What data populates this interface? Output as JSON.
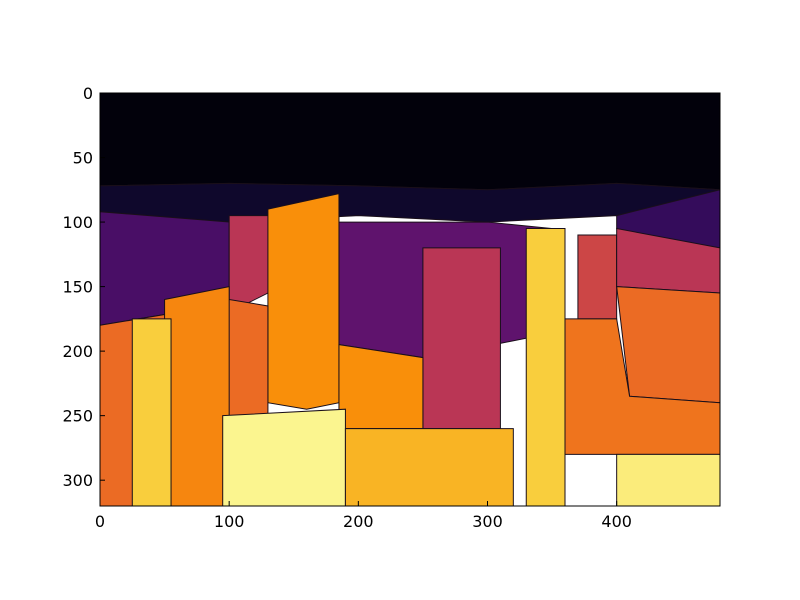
{
  "chart_data": {
    "type": "heatmap",
    "title": "",
    "xlabel": "",
    "ylabel": "",
    "xlim": [
      0,
      480
    ],
    "ylim": [
      320,
      0
    ],
    "x_ticks": [
      "0",
      "100",
      "200",
      "300",
      "400"
    ],
    "y_ticks": [
      "0",
      "50",
      "100",
      "150",
      "200",
      "250",
      "300"
    ],
    "colormap": "inferno",
    "grid": false,
    "legend": "none",
    "colormap_colors": [
      "#000004",
      "#0d0829",
      "#280b54",
      "#57106e",
      "#8a226a",
      "#bc3754",
      "#e55c30",
      "#f98e09",
      "#f9c932",
      "#fcffa4"
    ],
    "regions": [
      {
        "name": "sky",
        "level": 0.02,
        "polygon": [
          [
            0,
            0
          ],
          [
            480,
            0
          ],
          [
            480,
            75
          ],
          [
            400,
            70
          ],
          [
            300,
            75
          ],
          [
            200,
            72
          ],
          [
            100,
            70
          ],
          [
            0,
            72
          ]
        ]
      },
      {
        "name": "upper-tree-band",
        "level": 0.12,
        "polygon": [
          [
            0,
            72
          ],
          [
            100,
            70
          ],
          [
            200,
            72
          ],
          [
            300,
            75
          ],
          [
            400,
            70
          ],
          [
            480,
            75
          ],
          [
            480,
            100
          ],
          [
            400,
            95
          ],
          [
            300,
            100
          ],
          [
            200,
            95
          ],
          [
            100,
            100
          ],
          [
            0,
            92
          ]
        ]
      },
      {
        "name": "far-trees-left",
        "level": 0.3,
        "polygon": [
          [
            0,
            92
          ],
          [
            100,
            100
          ],
          [
            100,
            160
          ],
          [
            60,
            170
          ],
          [
            0,
            180
          ]
        ]
      },
      {
        "name": "mid-trees-center",
        "level": 0.35,
        "polygon": [
          [
            185,
            100
          ],
          [
            300,
            100
          ],
          [
            350,
            105
          ],
          [
            340,
            140
          ],
          [
            330,
            190
          ],
          [
            280,
            200
          ],
          [
            250,
            205
          ],
          [
            185,
            195
          ]
        ]
      },
      {
        "name": "right-canopy",
        "level": 0.25,
        "polygon": [
          [
            400,
            95
          ],
          [
            480,
            75
          ],
          [
            480,
            120
          ],
          [
            420,
            115
          ],
          [
            400,
            105
          ]
        ]
      },
      {
        "name": "bldg-dark-left",
        "level": 0.55,
        "polygon": [
          [
            100,
            95
          ],
          [
            185,
            95
          ],
          [
            185,
            140
          ],
          [
            140,
            150
          ],
          [
            100,
            170
          ]
        ]
      },
      {
        "name": "bldg-red-center",
        "level": 0.55,
        "polygon": [
          [
            250,
            120
          ],
          [
            310,
            120
          ],
          [
            310,
            260
          ],
          [
            250,
            260
          ]
        ]
      },
      {
        "name": "bldg-red-right",
        "level": 0.6,
        "polygon": [
          [
            370,
            110
          ],
          [
            400,
            110
          ],
          [
            400,
            175
          ],
          [
            370,
            175
          ]
        ]
      },
      {
        "name": "right-mid-band",
        "level": 0.55,
        "polygon": [
          [
            400,
            105
          ],
          [
            480,
            120
          ],
          [
            480,
            155
          ],
          [
            400,
            150
          ]
        ]
      },
      {
        "name": "right-orange",
        "level": 0.7,
        "polygon": [
          [
            400,
            150
          ],
          [
            480,
            155
          ],
          [
            480,
            240
          ],
          [
            410,
            235
          ]
        ]
      },
      {
        "name": "tower-orange",
        "level": 0.78,
        "polygon": [
          [
            130,
            90
          ],
          [
            185,
            78
          ],
          [
            185,
            240
          ],
          [
            160,
            245
          ],
          [
            130,
            240
          ]
        ]
      },
      {
        "name": "foreground-orange-left",
        "level": 0.7,
        "polygon": [
          [
            0,
            180
          ],
          [
            60,
            170
          ],
          [
            100,
            160
          ],
          [
            130,
            165
          ],
          [
            130,
            320
          ],
          [
            0,
            320
          ]
        ]
      },
      {
        "name": "pillar-orange",
        "level": 0.76,
        "polygon": [
          [
            50,
            160
          ],
          [
            100,
            150
          ],
          [
            100,
            320
          ],
          [
            50,
            320
          ]
        ]
      },
      {
        "name": "pillar-yellow-left",
        "level": 0.9,
        "polygon": [
          [
            25,
            175
          ],
          [
            55,
            175
          ],
          [
            55,
            320
          ],
          [
            25,
            320
          ]
        ]
      },
      {
        "name": "pillar-yellow-right",
        "level": 0.9,
        "polygon": [
          [
            330,
            105
          ],
          [
            360,
            105
          ],
          [
            360,
            320
          ],
          [
            330,
            320
          ]
        ]
      },
      {
        "name": "center-orange",
        "level": 0.78,
        "polygon": [
          [
            185,
            195
          ],
          [
            250,
            205
          ],
          [
            250,
            260
          ],
          [
            185,
            260
          ]
        ]
      },
      {
        "name": "base-yellow-center",
        "level": 0.98,
        "polygon": [
          [
            95,
            250
          ],
          [
            190,
            245
          ],
          [
            190,
            320
          ],
          [
            95,
            320
          ]
        ]
      },
      {
        "name": "base-stripes",
        "level": 0.85,
        "polygon": [
          [
            190,
            260
          ],
          [
            320,
            260
          ],
          [
            320,
            320
          ],
          [
            190,
            320
          ]
        ]
      },
      {
        "name": "right-lower-orange",
        "level": 0.72,
        "polygon": [
          [
            360,
            175
          ],
          [
            400,
            175
          ],
          [
            410,
            235
          ],
          [
            480,
            240
          ],
          [
            480,
            280
          ],
          [
            410,
            280
          ],
          [
            360,
            280
          ]
        ]
      },
      {
        "name": "base-yellow-right",
        "level": 0.96,
        "polygon": [
          [
            400,
            280
          ],
          [
            480,
            280
          ],
          [
            480,
            320
          ],
          [
            400,
            320
          ]
        ]
      }
    ]
  }
}
